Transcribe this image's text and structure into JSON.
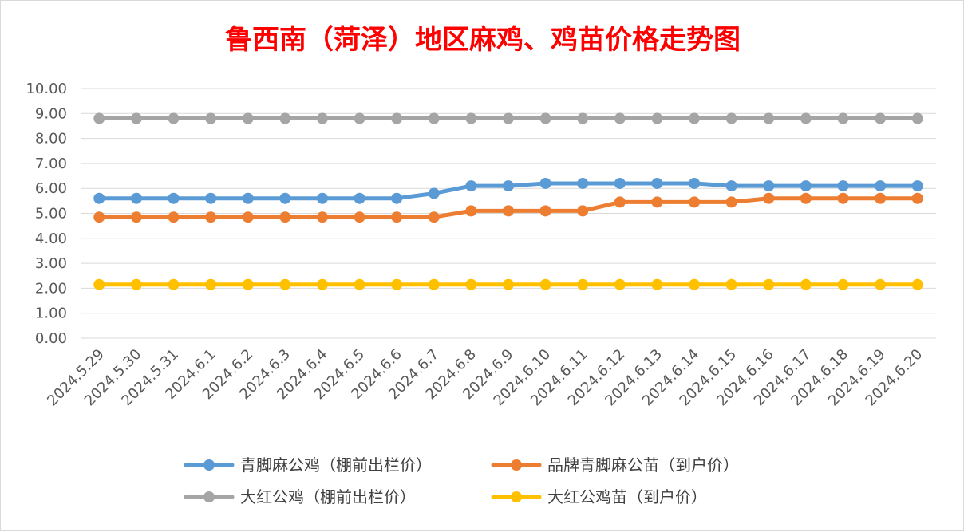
{
  "chart_data": {
    "type": "line",
    "title": "鲁西南（菏泽）地区麻鸡、鸡苗价格走势图",
    "title_color": "#ff0000",
    "xlabel": "",
    "ylabel": "",
    "ylim": [
      0,
      10
    ],
    "yticks": [
      "0.00",
      "1.00",
      "2.00",
      "3.00",
      "4.00",
      "5.00",
      "6.00",
      "7.00",
      "8.00",
      "9.00",
      "10.00"
    ],
    "grid": true,
    "legend_position": "bottom",
    "categories": [
      "2024.5.29",
      "2024.5.30",
      "2024.5.31",
      "2024.6.1",
      "2024.6.2",
      "2024.6.3",
      "2024.6.4",
      "2024.6.5",
      "2024.6.6",
      "2024.6.7",
      "2024.6.8",
      "2024.6.9",
      "2024.6.10",
      "2024.6.11",
      "2024.6.12",
      "2024.6.13",
      "2024.6.14",
      "2024.6.15",
      "2024.6.16",
      "2024.6.17",
      "2024.6.18",
      "2024.6.19",
      "2024.6.20"
    ],
    "series": [
      {
        "name": "青脚麻公鸡（棚前出栏价）",
        "color": "#5b9bd5",
        "values": [
          5.6,
          5.6,
          5.6,
          5.6,
          5.6,
          5.6,
          5.6,
          5.6,
          5.6,
          5.8,
          6.1,
          6.1,
          6.2,
          6.2,
          6.2,
          6.2,
          6.2,
          6.1,
          6.1,
          6.1,
          6.1,
          6.1,
          6.1
        ]
      },
      {
        "name": "品牌青脚麻公苗（到户价）",
        "color": "#ed7d31",
        "values": [
          4.85,
          4.85,
          4.85,
          4.85,
          4.85,
          4.85,
          4.85,
          4.85,
          4.85,
          4.85,
          5.1,
          5.1,
          5.1,
          5.1,
          5.45,
          5.45,
          5.45,
          5.45,
          5.6,
          5.6,
          5.6,
          5.6,
          5.6
        ]
      },
      {
        "name": "大红公鸡（棚前出栏价）",
        "color": "#a5a5a5",
        "values": [
          8.8,
          8.8,
          8.8,
          8.8,
          8.8,
          8.8,
          8.8,
          8.8,
          8.8,
          8.8,
          8.8,
          8.8,
          8.8,
          8.8,
          8.8,
          8.8,
          8.8,
          8.8,
          8.8,
          8.8,
          8.8,
          8.8,
          8.8
        ]
      },
      {
        "name": "大红公鸡苗（到户价）",
        "color": "#ffc000",
        "values": [
          2.15,
          2.15,
          2.15,
          2.15,
          2.15,
          2.15,
          2.15,
          2.15,
          2.15,
          2.15,
          2.15,
          2.15,
          2.15,
          2.15,
          2.15,
          2.15,
          2.15,
          2.15,
          2.15,
          2.15,
          2.15,
          2.15,
          2.15
        ]
      }
    ]
  }
}
